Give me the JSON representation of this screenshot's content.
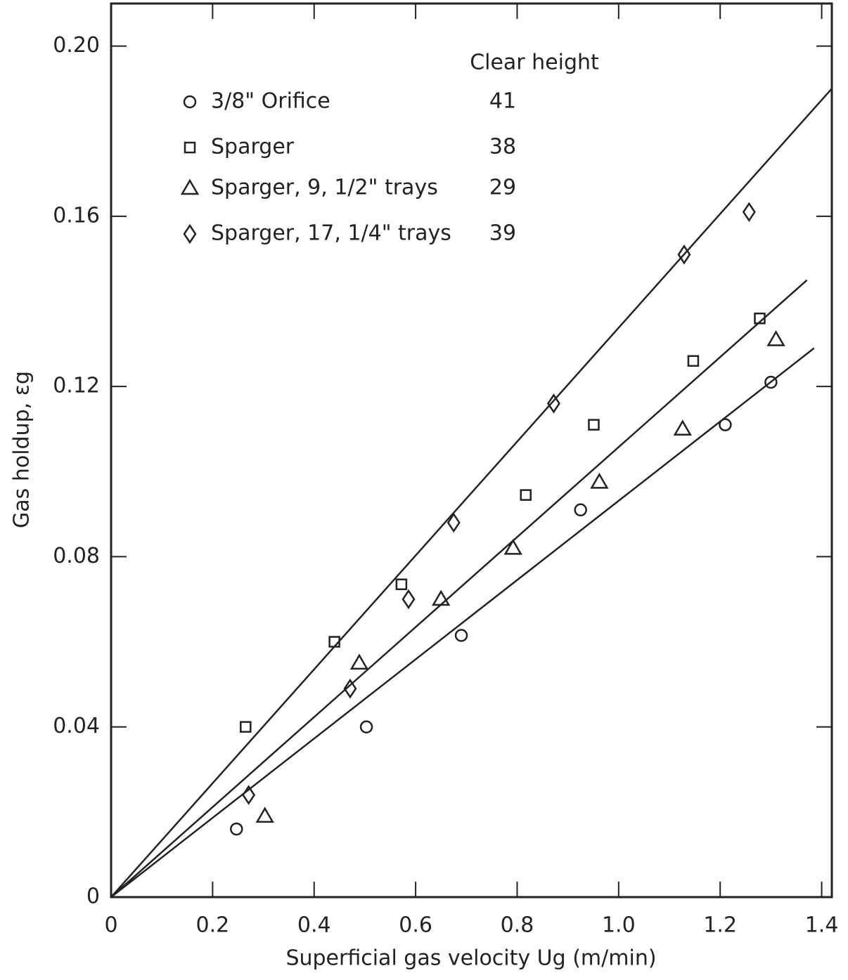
{
  "chart_data": {
    "type": "scatter",
    "xlabel": "Superficial gas velocity Ug (m/min)",
    "ylabel": "Gas holdup, εg",
    "legend_header": "Clear height",
    "legend": "upper left",
    "xlim": [
      0,
      1.42
    ],
    "ylim": [
      0,
      0.21
    ],
    "xticks": [
      0,
      0.2,
      0.4,
      0.6,
      0.8,
      {
        "value": 1.0,
        "label": "1.0"
      },
      1.2,
      1.4
    ],
    "yticks": [
      0,
      0.04,
      0.08,
      0.12,
      0.16,
      {
        "value": 0.2,
        "label": "0.20"
      }
    ],
    "series": [
      {
        "name": "3/8\" Orifice",
        "clear_height": 41,
        "marker": "circle",
        "color": "#222222",
        "x": [
          0.247,
          0.503,
          0.69,
          0.925,
          1.21,
          1.3
        ],
        "values": [
          0.016,
          0.04,
          0.0615,
          0.091,
          0.111,
          0.121
        ]
      },
      {
        "name": "Sparger",
        "clear_height": 38,
        "marker": "square",
        "color": "#222222",
        "x": [
          0.265,
          0.44,
          0.572,
          0.817,
          0.951,
          1.147,
          1.278
        ],
        "values": [
          0.04,
          0.06,
          0.0735,
          0.0945,
          0.111,
          0.126,
          0.136
        ]
      },
      {
        "name": "Sparger, 9, 1/2\" trays",
        "clear_height": 29,
        "marker": "triangle",
        "color": "#222222",
        "x": [
          0.303,
          0.489,
          0.65,
          0.792,
          0.962,
          1.126,
          1.31
        ],
        "values": [
          0.019,
          0.055,
          0.07,
          0.082,
          0.0975,
          0.11,
          0.131
        ]
      },
      {
        "name": "Sparger, 17, 1/4\" trays",
        "clear_height": 39,
        "marker": "diamond",
        "color": "#222222",
        "x": [
          0.271,
          0.471,
          0.586,
          0.675,
          0.872,
          1.129,
          1.257
        ],
        "values": [
          0.024,
          0.049,
          0.07,
          0.088,
          0.116,
          0.151,
          0.161
        ]
      }
    ],
    "fit_lines": [
      {
        "x": [
          0,
          1.42
        ],
        "y": [
          0,
          0.19
        ]
      },
      {
        "x": [
          0,
          1.371
        ],
        "y": [
          0,
          0.145
        ]
      },
      {
        "x": [
          0,
          1.385
        ],
        "y": [
          0,
          0.129
        ]
      }
    ]
  }
}
